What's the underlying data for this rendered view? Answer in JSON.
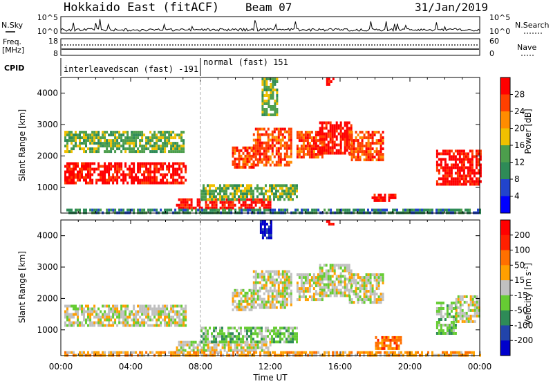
{
  "header": {
    "station": "Hokkaido East (fitACF)",
    "beam": "Beam 07",
    "date": "31/Jan/2019"
  },
  "noise_panel": {
    "left_label": "N.Sky",
    "left_ticks": [
      "10^5",
      "10^0"
    ],
    "right_ticks": [
      "10^5",
      "10^0"
    ],
    "right_label": "N.Search"
  },
  "freq_panel": {
    "left_label_line1": "Freq.",
    "left_label_line2": "[MHz]",
    "left_ticks": [
      "18",
      "8"
    ],
    "right_ticks": [
      "60",
      "0"
    ],
    "right_label": "Nave"
  },
  "cpid_panel": {
    "label": "CPID",
    "segments": [
      {
        "text": "interleavedscan (fast) -191",
        "start_hour": 0,
        "end_hour": 8
      },
      {
        "text": "normal (fast) 151",
        "start_hour": 8,
        "end_hour": 24
      }
    ]
  },
  "chart_data": [
    {
      "type": "heatmap",
      "name": "power",
      "ylabel": "Slant Range [km]",
      "xlim": [
        0,
        24
      ],
      "ylim": [
        180,
        4500
      ],
      "yticks": [
        "1000",
        "2000",
        "3000",
        "4000"
      ],
      "colorbar": {
        "label": "Power [dB]",
        "ticks": [
          "4",
          "8",
          "12",
          "16",
          "20",
          "24",
          "28"
        ],
        "colors": [
          "#0000ff",
          "#2244cc",
          "#2e8b57",
          "#4c9e4c",
          "#f0c000",
          "#ff8c00",
          "#ff4000",
          "#ff0000"
        ]
      },
      "regions": [
        {
          "t": [
            0.2,
            7.2
          ],
          "r": [
            1150,
            1800
          ],
          "level": 7
        },
        {
          "t": [
            6.6,
            12.0
          ],
          "r": [
            300,
            650
          ],
          "level": 7
        },
        {
          "t": [
            8.0,
            13.5
          ],
          "r": [
            650,
            1100
          ],
          "level": 3
        },
        {
          "t": [
            9.8,
            11.0
          ],
          "r": [
            1600,
            2300
          ],
          "level": 6
        },
        {
          "t": [
            11.0,
            13.2
          ],
          "r": [
            1700,
            2900
          ],
          "level": 6
        },
        {
          "t": [
            13.5,
            15.0
          ],
          "r": [
            2000,
            2800
          ],
          "level": 6
        },
        {
          "t": [
            14.8,
            16.6
          ],
          "r": [
            2100,
            3100
          ],
          "level": 7
        },
        {
          "t": [
            16.5,
            18.5
          ],
          "r": [
            1900,
            2800
          ],
          "level": 6
        },
        {
          "t": [
            17.8,
            19.2
          ],
          "r": [
            550,
            800
          ],
          "level": 7
        },
        {
          "t": [
            21.5,
            24.0
          ],
          "r": [
            1100,
            2200
          ],
          "level": 7
        },
        {
          "t": [
            0.2,
            24.0
          ],
          "r": [
            180,
            320
          ],
          "level": 2
        },
        {
          "t": [
            0.2,
            7.0
          ],
          "r": [
            2100,
            2800
          ],
          "level": 3
        },
        {
          "t": [
            11.5,
            12.4
          ],
          "r": [
            3300,
            4500
          ],
          "level": 3
        },
        {
          "t": [
            15.2,
            15.6
          ],
          "r": [
            4300,
            4500
          ],
          "level": 7
        }
      ]
    },
    {
      "type": "heatmap",
      "name": "velocity",
      "ylabel": "Slant Range [km]",
      "xlim": [
        0,
        24
      ],
      "ylim": [
        180,
        4500
      ],
      "yticks": [
        "1000",
        "2000",
        "3000",
        "4000"
      ],
      "xticks": [
        "00:00",
        "04:00",
        "08:00",
        "12:00",
        "16:00",
        "20:00",
        "00:00"
      ],
      "xlabel": "Time UT",
      "colorbar": {
        "label": "Velocity [m s^-1]",
        "ticks": [
          "200",
          "100",
          "50",
          "15",
          "-15",
          "-50",
          "-100",
          "-200"
        ],
        "colors": [
          "#0000cc",
          "#2244aa",
          "#2e8b57",
          "#66cc33",
          "#c0c0c0",
          "#ffa000",
          "#ff7000",
          "#ff2000",
          "#ff0000"
        ]
      },
      "regions": [
        {
          "t": [
            0.2,
            7.2
          ],
          "r": [
            1150,
            1800
          ],
          "level": 4
        },
        {
          "t": [
            6.6,
            12.0
          ],
          "r": [
            300,
            650
          ],
          "level": 4
        },
        {
          "t": [
            8.0,
            13.5
          ],
          "r": [
            650,
            1100
          ],
          "level": 3
        },
        {
          "t": [
            9.8,
            11.0
          ],
          "r": [
            1600,
            2300
          ],
          "level": 4
        },
        {
          "t": [
            11.0,
            13.2
          ],
          "r": [
            1700,
            2900
          ],
          "level": 4
        },
        {
          "t": [
            13.5,
            15.0
          ],
          "r": [
            2000,
            2800
          ],
          "level": 4
        },
        {
          "t": [
            14.8,
            16.6
          ],
          "r": [
            2100,
            3100
          ],
          "level": 4
        },
        {
          "t": [
            16.5,
            18.5
          ],
          "r": [
            1900,
            2800
          ],
          "level": 4
        },
        {
          "t": [
            18.0,
            19.5
          ],
          "r": [
            400,
            800
          ],
          "level": 6
        },
        {
          "t": [
            21.5,
            22.6
          ],
          "r": [
            900,
            1900
          ],
          "level": 3
        },
        {
          "t": [
            22.6,
            24.0
          ],
          "r": [
            1300,
            2100
          ],
          "level": 4
        },
        {
          "t": [
            0.2,
            24.0
          ],
          "r": [
            180,
            320
          ],
          "level": 5
        },
        {
          "t": [
            11.4,
            12.0
          ],
          "r": [
            3900,
            4500
          ],
          "level": 0
        },
        {
          "t": [
            15.2,
            15.6
          ],
          "r": [
            4350,
            4500
          ],
          "level": 8
        }
      ]
    }
  ]
}
